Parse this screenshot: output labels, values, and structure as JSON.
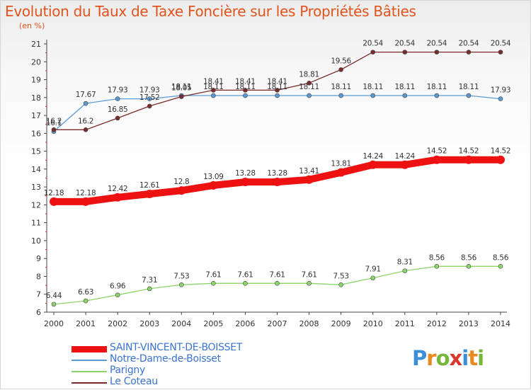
{
  "title": "Evolution du Taux de Taxe Foncière sur les Propriétés Bâties",
  "unit_label": "(en %)",
  "logo": "Proxiti",
  "chart_data": {
    "type": "line",
    "title": "Evolution du Taux de Taxe Foncière sur les Propriétés Bâties",
    "ylabel": "(en %)",
    "xlabel": "",
    "x": [
      "2000",
      "2001",
      "2002",
      "2003",
      "2004",
      "2005",
      "2006",
      "2007",
      "2008",
      "2009",
      "2010",
      "2011",
      "2012",
      "2013",
      "2014"
    ],
    "ylim": [
      6,
      21
    ],
    "yticks": [
      "6",
      "7",
      "8",
      "9",
      "10",
      "11",
      "12",
      "13",
      "14",
      "15",
      "16",
      "17",
      "18",
      "19",
      "20",
      "21"
    ],
    "grid": false,
    "legend_position": "bottom-left",
    "series": [
      {
        "name": "SAINT-VINCENT-DE-BOISSET",
        "color": "#ee1111",
        "values": [
          12.18,
          12.18,
          12.42,
          12.61,
          12.8,
          13.09,
          13.28,
          13.28,
          13.41,
          13.81,
          14.24,
          14.24,
          14.52,
          14.52,
          14.52
        ],
        "labels": [
          "12.18",
          "12.18",
          "12.42",
          "12.61",
          "12.8",
          "13.09",
          "13.28",
          "13.28",
          "13.41",
          "13.81",
          "14.24",
          "14.24",
          "14.52",
          "14.52",
          "14.52"
        ]
      },
      {
        "name": "Notre-Dame-de-Boisset",
        "color": "#5b9bd5",
        "values": [
          16.1,
          17.67,
          17.93,
          17.93,
          18.11,
          18.11,
          18.11,
          18.11,
          18.11,
          18.11,
          18.11,
          18.11,
          18.11,
          18.11,
          17.93
        ],
        "labels": [
          "16.1",
          "17.67",
          "17.93",
          "17.93",
          "18.11",
          "18.11",
          "18.11",
          "18.11",
          "18.11",
          "18.11",
          "18.11",
          "18.11",
          "18.11",
          "18.11",
          "17.93"
        ]
      },
      {
        "name": "Parigny",
        "color": "#8ed46c",
        "values": [
          6.44,
          6.63,
          6.96,
          7.31,
          7.53,
          7.61,
          7.61,
          7.61,
          7.61,
          7.53,
          7.91,
          8.31,
          8.56,
          8.56,
          8.56
        ],
        "labels": [
          "6.44",
          "6.63",
          "6.96",
          "7.31",
          "7.53",
          "7.61",
          "7.61",
          "7.61",
          "7.61",
          "7.53",
          "7.91",
          "8.31",
          "8.56",
          "8.56",
          "8.56"
        ]
      },
      {
        "name": "Le Coteau",
        "color": "#7a2b2b",
        "values": [
          16.2,
          16.2,
          16.85,
          17.52,
          18.05,
          18.41,
          18.41,
          18.41,
          18.81,
          19.56,
          20.54,
          20.54,
          20.54,
          20.54,
          20.54
        ],
        "labels": [
          "16.2",
          "16.2",
          "16.85",
          "17.52",
          "18.05",
          "18.41",
          "18.41",
          "18.41",
          "18.81",
          "19.56",
          "20.54",
          "20.54",
          "20.54",
          "20.54",
          "20.54"
        ]
      }
    ]
  }
}
